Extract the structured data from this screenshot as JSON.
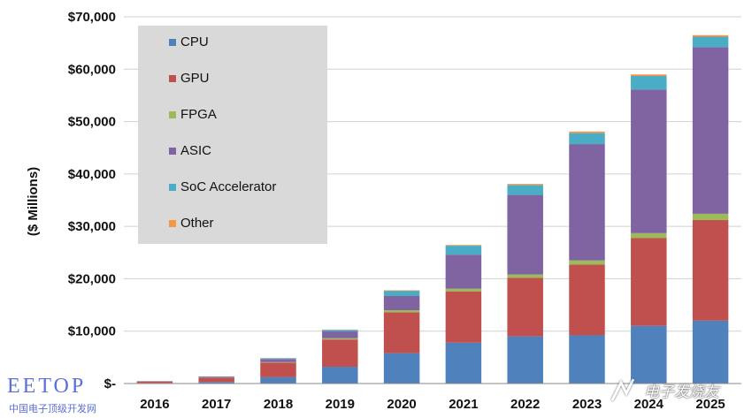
{
  "chart_data": {
    "type": "bar",
    "stacked": true,
    "title": "",
    "xlabel": "",
    "ylabel": "($ Millions)",
    "ylim": [
      0,
      70000
    ],
    "yticks": [
      "$70,000",
      "$60,000",
      "$50,000",
      "$40,000",
      "$30,000",
      "$20,000",
      "$10,000",
      "$-"
    ],
    "grid": true,
    "legend_position": "top-left",
    "categories": [
      "2016",
      "2017",
      "2018",
      "2019",
      "2020",
      "2021",
      "2022",
      "2023",
      "2024",
      "2025"
    ],
    "series": [
      {
        "name": "CPU",
        "color": "#4f81bd",
        "values": [
          100,
          300,
          1200,
          3200,
          5800,
          7800,
          9000,
          9200,
          11000,
          12000
        ]
      },
      {
        "name": "GPU",
        "color": "#c0504d",
        "values": [
          300,
          800,
          2800,
          5200,
          7800,
          9800,
          11200,
          13500,
          16800,
          19200
        ]
      },
      {
        "name": "FPGA",
        "color": "#9bbb59",
        "values": [
          20,
          40,
          80,
          250,
          400,
          500,
          600,
          800,
          900,
          1200
        ]
      },
      {
        "name": "ASIC",
        "color": "#8064a2",
        "values": [
          30,
          150,
          600,
          1300,
          2700,
          6500,
          15200,
          22200,
          27400,
          31800
        ]
      },
      {
        "name": "SoC Accelerator",
        "color": "#4bacc6",
        "values": [
          20,
          60,
          150,
          300,
          1000,
          1700,
          1900,
          2100,
          2600,
          2000
        ]
      },
      {
        "name": "Other",
        "color": "#f79646",
        "values": [
          10,
          20,
          30,
          50,
          100,
          150,
          200,
          300,
          300,
          300
        ]
      }
    ]
  },
  "watermark_left": {
    "logo": "EETOP",
    "subtitle": "中国电子顶级开发网"
  },
  "watermark_right": {
    "text": "电子发烧友"
  }
}
